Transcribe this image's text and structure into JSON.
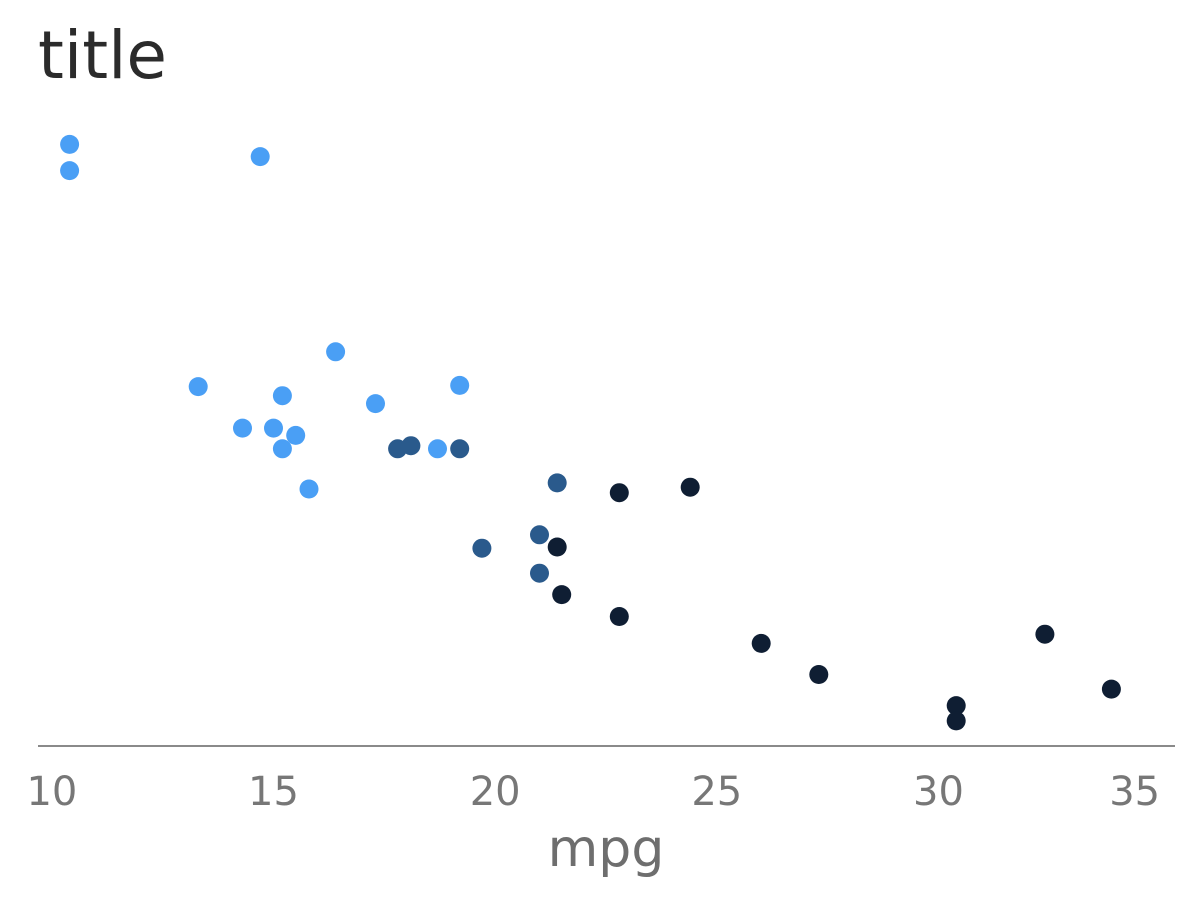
{
  "chart_data": {
    "type": "scatter",
    "title": "title",
    "xlabel": "mpg",
    "ylabel": "",
    "xlim": [
      9.8,
      35.2
    ],
    "ylim": [
      0,
      1
    ],
    "xticks": [
      10,
      15,
      20,
      25,
      30,
      35
    ],
    "xtick_labels": [
      "10",
      "15",
      "20",
      "25",
      "30",
      "35"
    ],
    "y_axis_visible": false,
    "grid": false,
    "legend": "none",
    "color_groups": [
      "#4A9FF5",
      "#2A5A8C",
      "#0F1E33"
    ],
    "points": [
      {
        "x": 10.4,
        "y": 0.96,
        "group": 0
      },
      {
        "x": 10.4,
        "y": 0.917,
        "group": 0
      },
      {
        "x": 14.7,
        "y": 0.94,
        "group": 0
      },
      {
        "x": 16.4,
        "y": 0.62,
        "group": 0
      },
      {
        "x": 13.3,
        "y": 0.563,
        "group": 0
      },
      {
        "x": 15.2,
        "y": 0.548,
        "group": 0
      },
      {
        "x": 19.2,
        "y": 0.565,
        "group": 0
      },
      {
        "x": 17.3,
        "y": 0.535,
        "group": 0
      },
      {
        "x": 14.3,
        "y": 0.495,
        "group": 0
      },
      {
        "x": 15.0,
        "y": 0.495,
        "group": 0
      },
      {
        "x": 15.5,
        "y": 0.483,
        "group": 0
      },
      {
        "x": 15.2,
        "y": 0.461,
        "group": 0
      },
      {
        "x": 18.7,
        "y": 0.461,
        "group": 0
      },
      {
        "x": 15.8,
        "y": 0.395,
        "group": 0
      },
      {
        "x": 17.8,
        "y": 0.461,
        "group": 1
      },
      {
        "x": 18.1,
        "y": 0.466,
        "group": 1
      },
      {
        "x": 19.2,
        "y": 0.461,
        "group": 1
      },
      {
        "x": 21.4,
        "y": 0.405,
        "group": 1
      },
      {
        "x": 21.0,
        "y": 0.32,
        "group": 1
      },
      {
        "x": 19.7,
        "y": 0.298,
        "group": 1
      },
      {
        "x": 21.0,
        "y": 0.257,
        "group": 1
      },
      {
        "x": 22.8,
        "y": 0.389,
        "group": 2
      },
      {
        "x": 24.4,
        "y": 0.398,
        "group": 2
      },
      {
        "x": 21.4,
        "y": 0.3,
        "group": 2
      },
      {
        "x": 21.5,
        "y": 0.222,
        "group": 2
      },
      {
        "x": 22.8,
        "y": 0.186,
        "group": 2
      },
      {
        "x": 26.0,
        "y": 0.142,
        "group": 2
      },
      {
        "x": 27.3,
        "y": 0.091,
        "group": 2
      },
      {
        "x": 32.4,
        "y": 0.157,
        "group": 2
      },
      {
        "x": 33.9,
        "y": 0.067,
        "group": 2
      },
      {
        "x": 30.4,
        "y": 0.04,
        "group": 2
      },
      {
        "x": 30.4,
        "y": 0.015,
        "group": 2
      }
    ]
  }
}
